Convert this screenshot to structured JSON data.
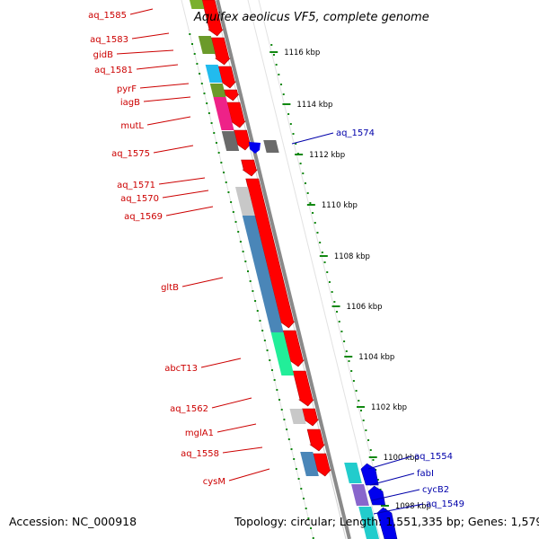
{
  "title": "Aquifex aeolicus VF5, complete genome",
  "accession": "Accession: NC_000918",
  "topology": "Topology: circular; Length: 1,551,335 bp; Genes: 1,579",
  "scale_labels": [
    "1116 kbp",
    "1114 kbp",
    "1112 kbp",
    "1110 kbp",
    "1108 kbp",
    "1106 kbp",
    "1104 kbp",
    "1102 kbp",
    "1100 kbp",
    "1098 kbp"
  ],
  "left_labels": [
    "aq_1585",
    "aq_1583",
    "gidB",
    "aq_1581",
    "pyrF",
    "iagB",
    "mutL",
    "aq_1575",
    "aq_1571",
    "aq_1570",
    "aq_1569",
    "gltB",
    "abcT13",
    "aq_1562",
    "mglA1",
    "aq_1558",
    "cysM"
  ],
  "right_labels": [
    "aq_1574",
    "aq_1554",
    "fabI",
    "cycB2",
    "aq_1549"
  ],
  "colors": {
    "forward_cds": "#ff0000",
    "reverse_cds": "#0000ee",
    "left_label": "#cc0000",
    "right_label": "#0000aa",
    "tick": "#118811",
    "backbone": "#8a8a8a",
    "cog_green": "#6b9a2a",
    "cog_cyan": "#22bbee",
    "cog_pink": "#ee2288",
    "cog_gray": "#6a6a6a",
    "cog_lightgray": "#c8c8c8",
    "cog_steelblue": "#4a86b8",
    "cog_mint": "#22ee99",
    "cog_teal": "#22cccc",
    "cog_purple": "#8866cc"
  }
}
